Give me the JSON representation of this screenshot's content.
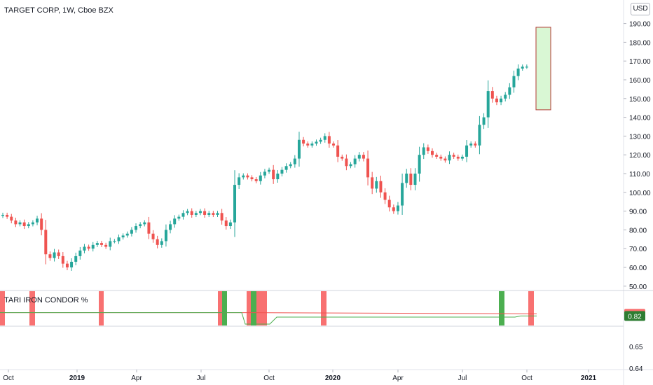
{
  "header": {
    "title": "TARGET CORP, 1W, Cboe BZX",
    "currency": "USD"
  },
  "indicator": {
    "title": "TARI IRON CONDOR %",
    "badges": [
      "0.86",
      "0.82"
    ]
  },
  "colors": {
    "up": "#26a69a",
    "down": "#ef5350",
    "band_red": "#f87171",
    "band_green": "#4caf50",
    "line_red": "#ef5350",
    "line_green": "#4caf50",
    "box_fill": "#d9f7d4",
    "box_border": "#b23b35"
  },
  "chart_data": [
    {
      "type": "candlestick",
      "title": "TARGET CORP, 1W, Cboe BZX",
      "x_ticks": [
        "Oct",
        "2019",
        "Apr",
        "Jul",
        "Oct",
        "2020",
        "Apr",
        "Jul",
        "Oct",
        "2021"
      ],
      "y_ticks": [
        50,
        60,
        70,
        80,
        90,
        100,
        110,
        120,
        130,
        140,
        150,
        160,
        170,
        180,
        190
      ],
      "ylim": [
        48,
        196
      ],
      "target_box": {
        "low": 144,
        "high": 188
      },
      "closes": [
        88,
        87,
        85,
        83,
        84,
        82,
        83,
        84,
        86,
        80,
        67,
        65,
        68,
        66,
        62,
        60,
        63,
        66,
        69,
        71,
        70,
        72,
        73,
        72,
        71,
        74,
        74,
        76,
        77,
        78,
        80,
        82,
        83,
        84,
        78,
        75,
        72,
        74,
        80,
        83,
        86,
        87,
        89,
        90,
        88,
        89,
        90,
        88,
        89,
        88,
        89,
        85,
        82,
        84,
        104,
        108,
        109,
        108,
        107,
        106,
        109,
        111,
        112,
        107,
        110,
        112,
        114,
        115,
        118,
        128,
        126,
        125,
        126,
        127,
        128,
        130,
        126,
        125,
        119,
        118,
        114,
        115,
        118,
        120,
        118,
        108,
        102,
        106,
        100,
        96,
        92,
        90,
        93,
        105,
        110,
        104,
        110,
        120,
        124,
        122,
        120,
        119,
        118,
        117,
        120,
        119,
        118,
        119,
        125,
        126,
        125,
        136,
        140,
        154,
        150,
        148,
        150,
        152,
        156,
        162,
        166,
        167,
        167
      ]
    },
    {
      "type": "line",
      "title": "TARI IRON CONDOR %",
      "y_ticks": [
        0.64,
        0.65,
        0.8
      ],
      "series": [
        {
          "name": "",
          "color": "red",
          "start": 0.88,
          "end": 0.86
        },
        {
          "name": "",
          "color": "green",
          "start": 0.88,
          "mid": 0.8,
          "end": 0.82
        }
      ]
    }
  ]
}
